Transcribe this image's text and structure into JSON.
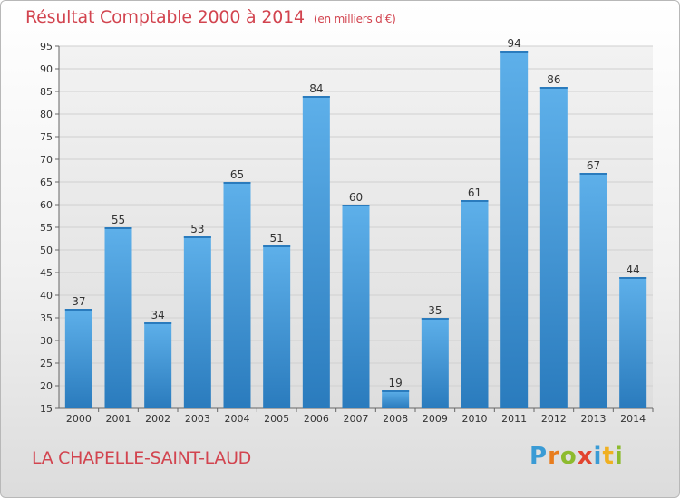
{
  "title": "Résultat Comptable 2000 à 2014",
  "unit": "(en milliers d'€)",
  "place": "LA CHAPELLE-SAINT-LAUD",
  "logo": {
    "letters": [
      "P",
      "r",
      "o",
      "x",
      "i",
      "t",
      "i"
    ],
    "colors": [
      "#3a9bd5",
      "#e87d1e",
      "#8dbb2e",
      "#e2442f",
      "#3a9bd5",
      "#f0b021",
      "#8dbb2e"
    ]
  },
  "colors": {
    "title": "#d2444f",
    "bar_top": "#5eb0ea",
    "bar_bottom": "#2a7bbd",
    "grid": "#d0d0d0"
  },
  "chart_data": {
    "type": "bar",
    "categories": [
      "2000",
      "2001",
      "2002",
      "2003",
      "2004",
      "2005",
      "2006",
      "2007",
      "2008",
      "2009",
      "2010",
      "2011",
      "2012",
      "2013",
      "2014"
    ],
    "values": [
      37,
      55,
      34,
      53,
      65,
      51,
      84,
      60,
      19,
      35,
      61,
      94,
      86,
      67,
      44
    ],
    "ylim": [
      15,
      95
    ],
    "yticks": [
      15,
      20,
      25,
      30,
      35,
      40,
      45,
      50,
      55,
      60,
      65,
      70,
      75,
      80,
      85,
      90,
      95
    ],
    "grid": true,
    "title": "Résultat Comptable 2000 à 2014",
    "xlabel": "",
    "ylabel": ""
  }
}
